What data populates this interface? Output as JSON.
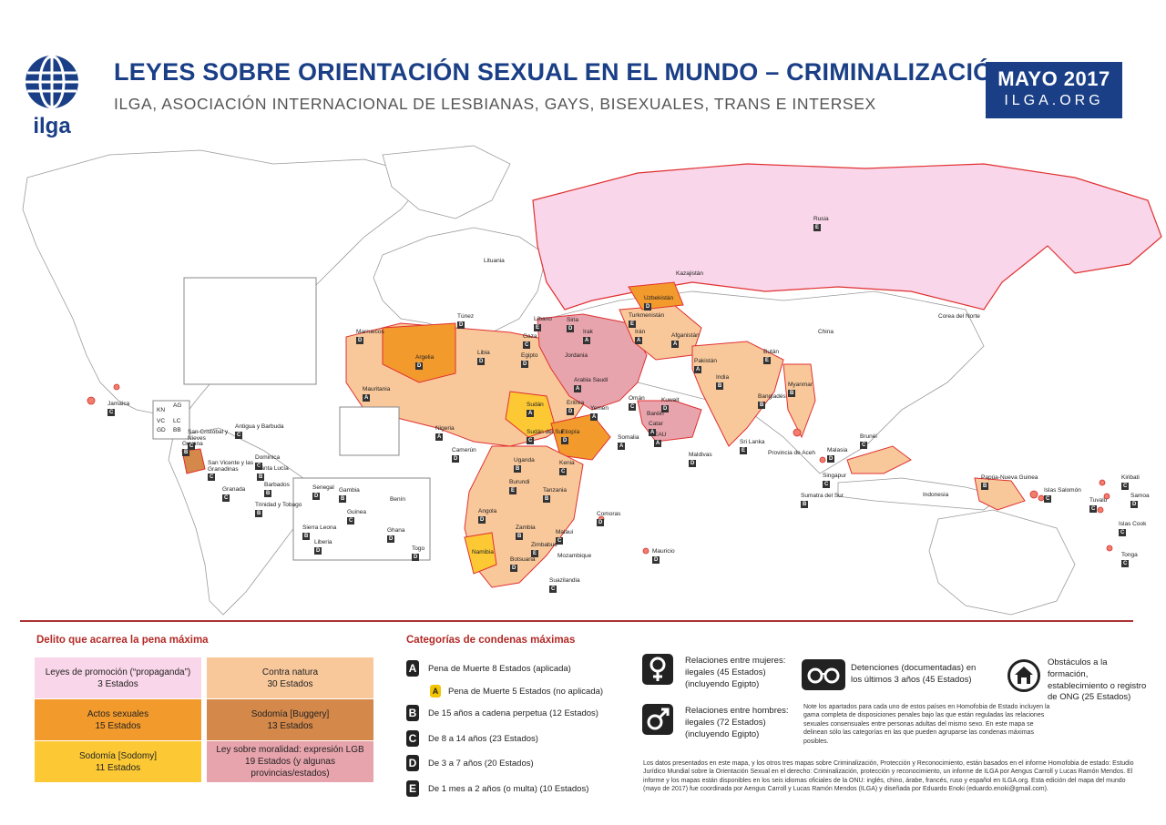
{
  "header": {
    "logo_text": "ilga",
    "title": "LEYES SOBRE ORIENTACIÓN SEXUAL EN EL MUNDO – CRIMINALIZACIÓN",
    "subtitle": "ILGA, ASOCIACIÓN INTERNACIONAL DE LESBIANAS, GAYS, BISEXUALES, TRANS E INTERSEX",
    "date": "MAYO 2017",
    "site": "ILGA.ORG"
  },
  "colors": {
    "brand_blue": "#1a3f86",
    "propaganda": "#f9d6e9",
    "contra_natura": "#f8c89b",
    "actos_sexuales": "#f39a2c",
    "buggery": "#d4884a",
    "sodomy": "#fcc935",
    "moralidad": "#e8a4ad",
    "border_red": "#e03030"
  },
  "map_labels": [
    {
      "name": "Rusia",
      "code": "E"
    },
    {
      "name": "Kazajistán",
      "code": ""
    },
    {
      "name": "Lituania",
      "code": ""
    },
    {
      "name": "Uzbekistán",
      "code": "D"
    },
    {
      "name": "Turkmenistán",
      "code": "E"
    },
    {
      "name": "Irán",
      "code": "A"
    },
    {
      "name": "Afganistán",
      "code": "A"
    },
    {
      "name": "Pakistán",
      "code": "A"
    },
    {
      "name": "India",
      "code": "B"
    },
    {
      "name": "China",
      "code": ""
    },
    {
      "name": "Corea del Norte",
      "code": ""
    },
    {
      "name": "Bután",
      "code": "E"
    },
    {
      "name": "Bangladés",
      "code": "B"
    },
    {
      "name": "Myanmar",
      "code": "B"
    },
    {
      "name": "Sri Lanka",
      "code": "E"
    },
    {
      "name": "Maldivas",
      "code": "D"
    },
    {
      "name": "Malasia",
      "code": "D"
    },
    {
      "name": "Singapur",
      "code": "C"
    },
    {
      "name": "Brunéi",
      "code": "C"
    },
    {
      "name": "Indonesia",
      "code": ""
    },
    {
      "name": "Provincia de Aceh",
      "code": ""
    },
    {
      "name": "Sumatra del Sur",
      "code": "B"
    },
    {
      "name": "Papúa-Nueva Guinea",
      "code": "B"
    },
    {
      "name": "Islas Salomón",
      "code": "C"
    },
    {
      "name": "Kiribati",
      "code": "C"
    },
    {
      "name": "Samoa",
      "code": "D"
    },
    {
      "name": "Tuvalu",
      "code": "C"
    },
    {
      "name": "Islas Cook",
      "code": "C"
    },
    {
      "name": "Tonga",
      "code": "C"
    },
    {
      "name": "Marruecos",
      "code": "D"
    },
    {
      "name": "Argelia",
      "code": "D"
    },
    {
      "name": "Túnez",
      "code": "D"
    },
    {
      "name": "Libia",
      "code": "D"
    },
    {
      "name": "Egipto",
      "code": "D"
    },
    {
      "name": "Mauritania",
      "code": "A"
    },
    {
      "name": "Sudán",
      "code": "A"
    },
    {
      "name": "Sudán del Sur",
      "code": "C"
    },
    {
      "name": "Etiopía",
      "code": "D"
    },
    {
      "name": "Eritrea",
      "code": "D"
    },
    {
      "name": "Somalia",
      "code": "A"
    },
    {
      "name": "Nigeria",
      "code": "A"
    },
    {
      "name": "Camerún",
      "code": "D"
    },
    {
      "name": "Uganda",
      "code": "B"
    },
    {
      "name": "Kenia",
      "code": "C"
    },
    {
      "name": "Burundi",
      "code": "E"
    },
    {
      "name": "Tanzania",
      "code": "B"
    },
    {
      "name": "Comoras",
      "code": "D"
    },
    {
      "name": "Angola",
      "code": "D"
    },
    {
      "name": "Zambia",
      "code": "B"
    },
    {
      "name": "Malaui",
      "code": "C"
    },
    {
      "name": "Zimbabue",
      "code": "E"
    },
    {
      "name": "Mozambique",
      "code": ""
    },
    {
      "name": "Namibia",
      "code": ""
    },
    {
      "name": "Botsuana",
      "code": "D"
    },
    {
      "name": "Suazilandia",
      "code": "C"
    },
    {
      "name": "Mauricio",
      "code": "D"
    },
    {
      "name": "Líbano",
      "code": "E"
    },
    {
      "name": "Gaza",
      "code": "C"
    },
    {
      "name": "Siria",
      "code": "D"
    },
    {
      "name": "Irak",
      "code": "A"
    },
    {
      "name": "Jordania",
      "code": ""
    },
    {
      "name": "Arabia Saudí",
      "code": "A"
    },
    {
      "name": "Yemen",
      "code": "A"
    },
    {
      "name": "Omán",
      "code": "C"
    },
    {
      "name": "Kuwait",
      "code": "D"
    },
    {
      "name": "Baréin",
      "code": ""
    },
    {
      "name": "Catar",
      "code": "A"
    },
    {
      "name": "EAU",
      "code": "A"
    },
    {
      "name": "Senegal",
      "code": "D"
    },
    {
      "name": "Gambia",
      "code": "B"
    },
    {
      "name": "Guinea",
      "code": "C"
    },
    {
      "name": "Sierra Leona",
      "code": "B"
    },
    {
      "name": "Liberia",
      "code": "D"
    },
    {
      "name": "Ghana",
      "code": "D"
    },
    {
      "name": "Togo",
      "code": "D"
    },
    {
      "name": "Benín",
      "code": ""
    },
    {
      "name": "Jamaica",
      "code": "C"
    },
    {
      "name": "Guyana",
      "code": "B"
    },
    {
      "name": "San Cristóbal y Nieves",
      "code": "C"
    },
    {
      "name": "Antigua y Barbuda",
      "code": "C"
    },
    {
      "name": "Dominica",
      "code": "C"
    },
    {
      "name": "San Vicente y las Granadinas",
      "code": "C"
    },
    {
      "name": "Santa Lucía",
      "code": "B"
    },
    {
      "name": "Barbados",
      "code": "B"
    },
    {
      "name": "Granada",
      "code": "C"
    },
    {
      "name": "Trinidad y Tobago",
      "code": "B"
    },
    {
      "name": "AG",
      "code": ""
    },
    {
      "name": "KN",
      "code": ""
    },
    {
      "name": "VC",
      "code": ""
    },
    {
      "name": "LC",
      "code": ""
    },
    {
      "name": "GD",
      "code": ""
    },
    {
      "name": "BB",
      "code": ""
    }
  ],
  "legend": {
    "offense_header": "Delito que acarrea la pena máxima",
    "offenses": [
      {
        "label": "Leyes de promoción (“propaganda”)",
        "count": "3 Estados"
      },
      {
        "label": "Contra natura",
        "count": "30 Estados"
      },
      {
        "label": "Actos sexuales",
        "count": "15 Estados"
      },
      {
        "label": "Sodomía [Buggery]",
        "count": "13 Estados"
      },
      {
        "label": "Sodomía [Sodomy]",
        "count": "11 Estados"
      },
      {
        "label": "Ley sobre moralidad: expresión LGB",
        "count": "19 Estados (y algunas provincias/estados)"
      }
    ],
    "penalty_header": "Categorías de condenas máximas",
    "penalties": [
      {
        "letter": "A",
        "text": "Pena de Muerte 8 Estados (aplicada)"
      },
      {
        "letter": "A",
        "text": "Pena de Muerte 5 Estados (no aplicada)"
      },
      {
        "letter": "B",
        "text": "De 15 años a cadena perpetua (12 Estados)"
      },
      {
        "letter": "C",
        "text": "De 8 a 14 años (23 Estados)"
      },
      {
        "letter": "D",
        "text": "De 3 a 7 años (20 Estados)"
      },
      {
        "letter": "E",
        "text": "De 1 mes a 2 años (o multa) (10 Estados)"
      }
    ],
    "women": "Relaciones entre mujeres: ilegales (45 Estados) (incluyendo Egipto)",
    "men": "Relaciones entre hombres: ilegales (72 Estados) (incluyendo Egipto)",
    "detentions": "Detenciones (documentadas) en los últimos 3 años (45 Estados)",
    "ngo": "Obstáculos a la formación, establecimiento o registro de ONG (25 Estados)",
    "note": "Note los apartados para cada uno de estos países en Homofobia de Estado incluyen la gama completa de disposiciones penales bajo las que están reguladas las relaciones sexuales consensuales entre personas adultas del mismo sexo. En este mapa se delinean sólo las categorías en las que pueden agruparse las condenas máximas posibles.",
    "footer": "Los datos presentados en este mapa, y los otros tres mapas sobre Criminalización, Protección y Reconocimiento, están basados en el informe Homofobia de estado: Estudio Jurídico Mundial sobre la Orientación Sexual en el derecho: Criminalización, protección y reconocimiento, un informe de ILGA por Aengus Carroll y Lucas Ramón Mendos. El informe y los mapas están disponibles en los seis idiomas oficiales de la ONU: inglés, chino, árabe, francés, ruso y español en ILGA.org. Esta edición del mapa del mundo (mayo de 2017) fue coordinada por Aengus Carroll y Lucas Ramón Mendos (ILGA) y diseñada por Eduardo Enoki (eduardo.enoki@gmail.com)."
  }
}
